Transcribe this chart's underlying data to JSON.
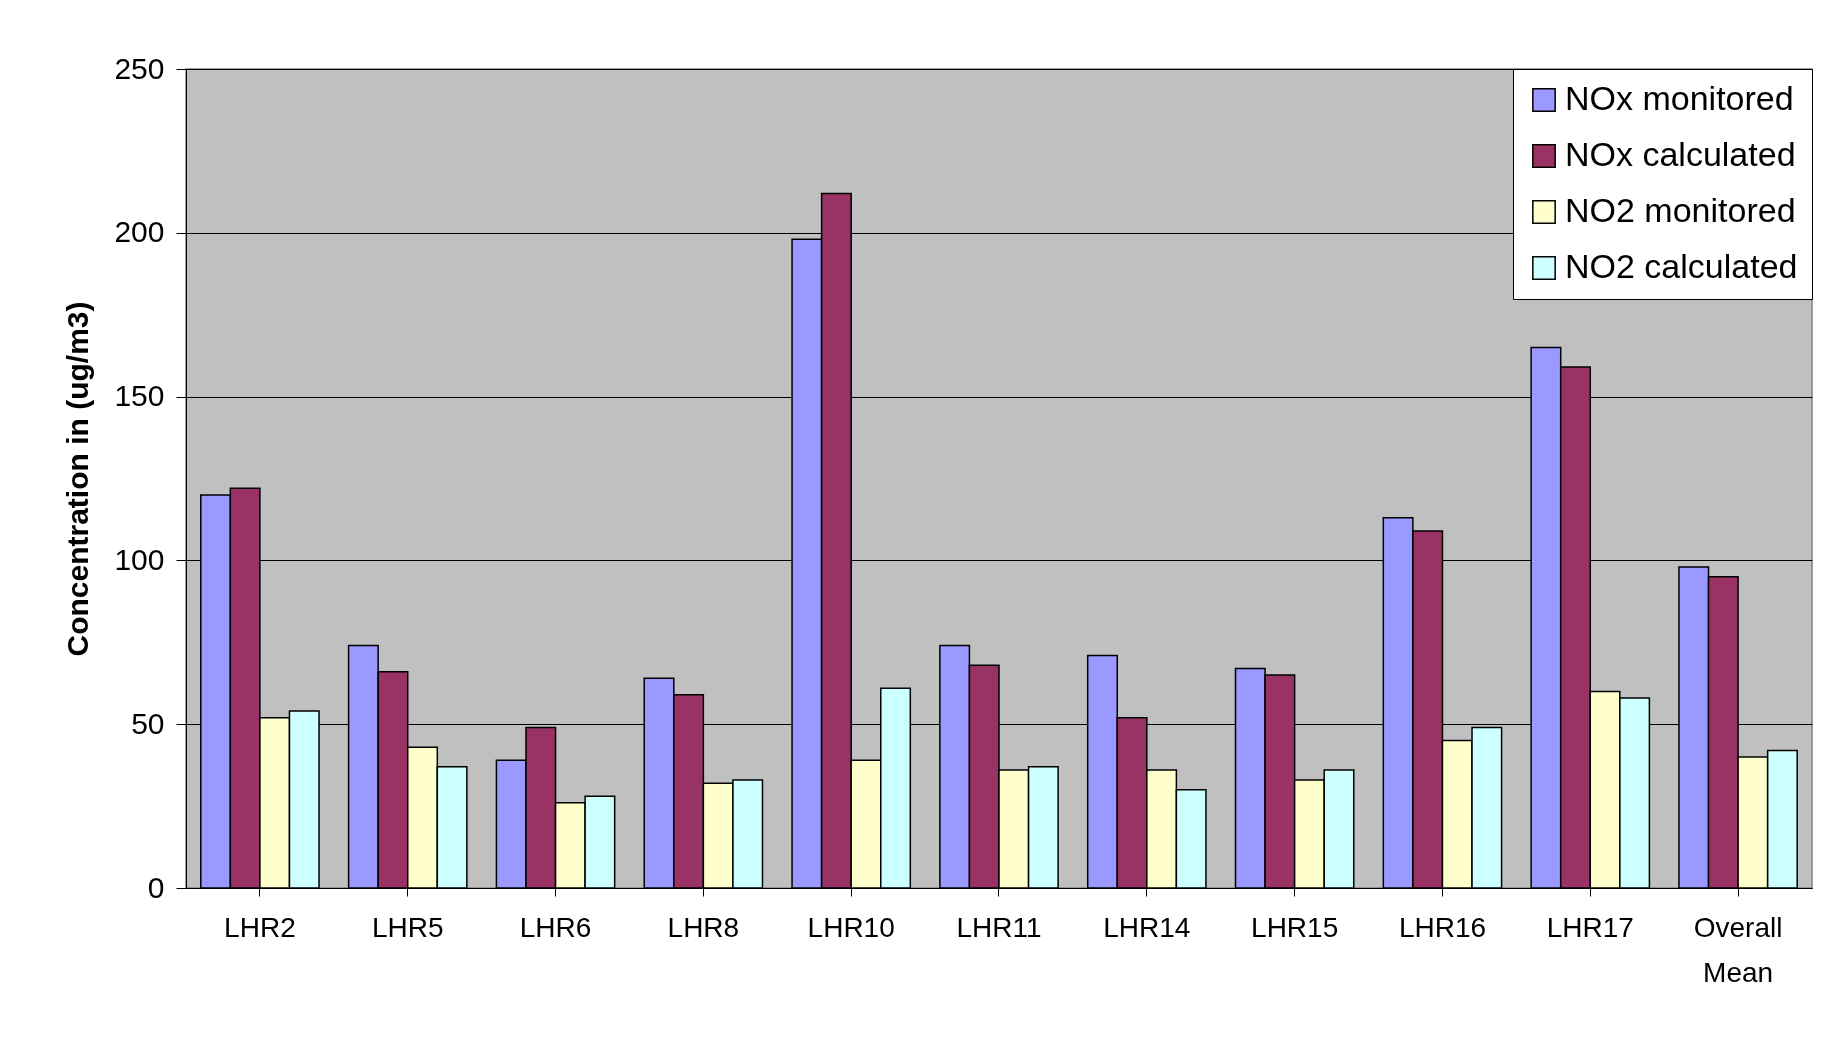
{
  "chart_data": {
    "type": "bar",
    "ylabel": "Concentration in (ug/m3)",
    "categories": [
      "LHR2",
      "LHR5",
      "LHR6",
      "LHR8",
      "LHR10",
      "LHR11",
      "LHR14",
      "LHR15",
      "LHR16",
      "LHR17",
      "Overall Mean"
    ],
    "series": [
      {
        "name": "NOx monitored",
        "color": "#9999ff",
        "values": [
          120,
          74,
          39,
          64,
          198,
          74,
          71,
          67,
          113,
          165,
          98
        ]
      },
      {
        "name": "NOx calculated",
        "color": "#993366",
        "values": [
          122,
          66,
          49,
          59,
          212,
          68,
          52,
          65,
          109,
          159,
          95
        ]
      },
      {
        "name": "NO2 monitored",
        "color": "#ffffcc",
        "values": [
          52,
          43,
          26,
          32,
          39,
          36,
          36,
          33,
          45,
          60,
          40
        ]
      },
      {
        "name": "NO2 calculated",
        "color": "#ccffff",
        "values": [
          54,
          37,
          28,
          33,
          61,
          37,
          30,
          36,
          49,
          58,
          42
        ]
      }
    ],
    "ylim": [
      0,
      250
    ],
    "yticks": [
      0,
      50,
      100,
      150,
      200,
      250
    ],
    "grid": "y",
    "legend": "top right"
  }
}
